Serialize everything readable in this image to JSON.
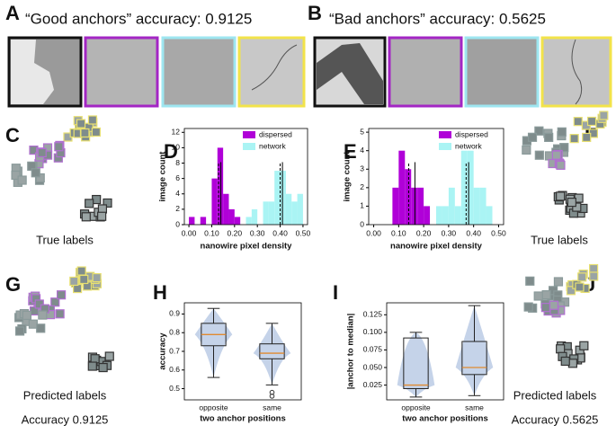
{
  "headings": [
    "“Good anchors” accuracy: 0.9125",
    "“Bad anchors” accuracy: 0.5625"
  ],
  "panel_letters": {
    "A": "A",
    "B": "B",
    "C": "C",
    "D": "D",
    "E": "E",
    "F": "F",
    "G": "G",
    "H": "H",
    "I": "I",
    "J": "J"
  },
  "captions": {
    "C": "True labels",
    "F": "True labels",
    "G": [
      "Predicted labels",
      "Accuracy 0.9125"
    ],
    "J": [
      "Predicted labels",
      "Accuracy 0.5625"
    ]
  },
  "chart_data": [
    {
      "type": "histogram",
      "xlabel": "nanowire pixel density",
      "ylabel": "image count",
      "bins": [
        0,
        0.025,
        0.05,
        0.075,
        0.1,
        0.125,
        0.15,
        0.175,
        0.2,
        0.225,
        0.25,
        0.275,
        0.3,
        0.325,
        0.35,
        0.375,
        0.4,
        0.425,
        0.45,
        0.475,
        0.5
      ],
      "series": [
        {
          "name": "dispersed",
          "color": "#b000d8",
          "values": [
            1,
            0,
            1,
            0,
            6,
            10,
            4,
            2,
            1,
            0,
            0,
            0,
            0,
            0,
            0,
            0,
            0,
            0,
            0,
            0
          ]
        },
        {
          "name": "network",
          "color": "#aaf4f4",
          "values": [
            0,
            0,
            0,
            0,
            0,
            0,
            0,
            0,
            0,
            0,
            1,
            2,
            0,
            3,
            3,
            7,
            7,
            4,
            3,
            4
          ]
        }
      ],
      "lines": [
        {
          "value": 0.13,
          "dashed": true
        },
        {
          "value": 0.14,
          "dashed": false
        },
        {
          "value": 0.4,
          "dashed": true
        },
        {
          "value": 0.41,
          "dashed": false
        }
      ],
      "xlim": [
        -0.02,
        0.52
      ],
      "xticks": [
        {
          "value": 0,
          "label": "0.00"
        },
        {
          "value": 0.1,
          "label": "0.10"
        },
        {
          "value": 0.2,
          "label": "0.20"
        },
        {
          "value": 0.3,
          "label": "0.30"
        },
        {
          "value": 0.4,
          "label": "0.40"
        },
        {
          "value": 0.5,
          "label": "0.50"
        }
      ],
      "ylim": [
        0,
        12.5
      ],
      "yticks": [
        0,
        2,
        4,
        6,
        8,
        10,
        12
      ]
    },
    {
      "type": "histogram",
      "xlabel": "nanowire pixel density",
      "ylabel": "image count",
      "bins": [
        0,
        0.025,
        0.05,
        0.075,
        0.1,
        0.125,
        0.15,
        0.175,
        0.2,
        0.225,
        0.25,
        0.275,
        0.3,
        0.325,
        0.35,
        0.375,
        0.4,
        0.425,
        0.45,
        0.475,
        0.5
      ],
      "series": [
        {
          "name": "dispersed",
          "color": "#b000d8",
          "values": [
            0,
            0,
            0,
            2,
            4,
            3,
            2,
            2,
            1,
            0,
            0,
            0,
            0,
            0,
            0,
            0,
            0,
            0,
            0,
            0
          ]
        },
        {
          "name": "network",
          "color": "#aaf4f4",
          "values": [
            0,
            0,
            0,
            0,
            0,
            0,
            0,
            0,
            0,
            0,
            1,
            1,
            2,
            1,
            4,
            4,
            2,
            2,
            1,
            0
          ]
        }
      ],
      "lines": [
        {
          "value": 0.14,
          "dashed": true
        },
        {
          "value": 0.165,
          "dashed": false
        },
        {
          "value": 0.37,
          "dashed": true
        },
        {
          "value": 0.38,
          "dashed": false
        }
      ],
      "xlim": [
        -0.02,
        0.52
      ],
      "xticks": [
        {
          "value": 0,
          "label": "0.00"
        },
        {
          "value": 0.1,
          "label": "0.10"
        },
        {
          "value": 0.2,
          "label": "0.20"
        },
        {
          "value": 0.3,
          "label": "0.30"
        },
        {
          "value": 0.4,
          "label": "0.40"
        },
        {
          "value": 0.5,
          "label": "0.50"
        }
      ],
      "ylim": [
        0,
        5.2
      ],
      "yticks": [
        0,
        1,
        2,
        3,
        4,
        5
      ]
    },
    {
      "type": "box",
      "xlabel": "two anchor positions",
      "ylabel": "accuracy",
      "color": "#b6c8e4",
      "categories": [
        "opposite",
        "same"
      ],
      "boxes": [
        {
          "min": 0.56,
          "q1": 0.73,
          "median": 0.79,
          "q3": 0.85,
          "max": 0.93
        },
        {
          "min": 0.52,
          "q1": 0.66,
          "median": 0.69,
          "q3": 0.74,
          "max": 0.85,
          "outliers": [
            0.46,
            0.48
          ]
        }
      ],
      "ylim": [
        0.44,
        0.96
      ],
      "yticks": [
        0.5,
        0.6,
        0.7,
        0.8,
        0.9
      ]
    },
    {
      "type": "box",
      "xlabel": "two anchor positions",
      "ylabel": "|anchor to median|",
      "color": "#b6c8e4",
      "categories": [
        "opposite",
        "same"
      ],
      "boxes": [
        {
          "min": 0.008,
          "q1": 0.02,
          "median": 0.025,
          "q3": 0.092,
          "max": 0.1
        },
        {
          "min": 0.01,
          "q1": 0.04,
          "median": 0.05,
          "q3": 0.087,
          "max": 0.138
        }
      ],
      "ylim": [
        0.004,
        0.142
      ],
      "yticks": [
        0.025,
        {
          "value": 0.05,
          "label": "0.050"
        },
        0.075,
        {
          "value": 0.1,
          "label": "0.100"
        },
        0.125
      ]
    }
  ]
}
